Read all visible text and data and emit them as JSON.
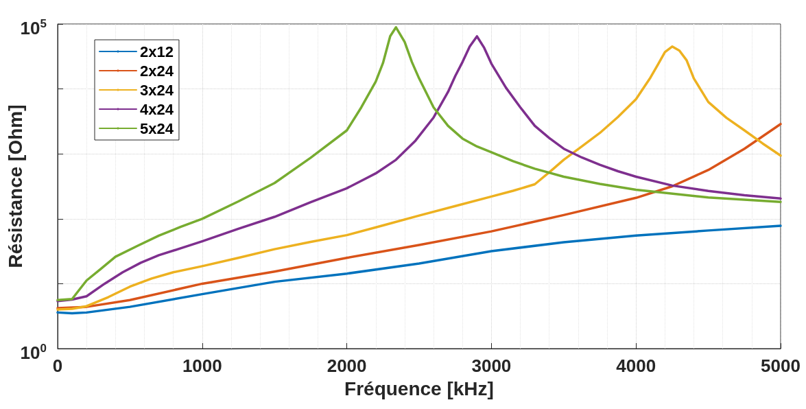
{
  "chart_data": {
    "type": "line",
    "xlabel": "Fréquence [kHz]",
    "ylabel": "Résistance [Ohm]",
    "xlim": [
      0,
      5000
    ],
    "xticks": [
      0,
      1000,
      2000,
      3000,
      4000,
      5000
    ],
    "ylim": [
      1,
      100000
    ],
    "yticks": [
      {
        "value": 1,
        "label": "10$^{0}$"
      },
      {
        "value": 10,
        "label": null
      },
      {
        "value": 100,
        "label": null
      },
      {
        "value": 1000,
        "label": null
      },
      {
        "value": 10000,
        "label": null
      },
      {
        "value": 100000,
        "label": "10$^{5}$"
      }
    ],
    "log": "y",
    "grid": true,
    "legend": "top left",
    "marker": "none",
    "line_style": "solid",
    "series": [
      {
        "name": "2x12",
        "color": "#0072bd",
        "x": [
          0,
          100,
          200,
          500,
          1000,
          1500,
          2000,
          2500,
          3000,
          3500,
          4000,
          4500,
          5000
        ],
        "values": [
          3.6,
          3.5,
          3.6,
          4.4,
          6.9,
          10.7,
          14.3,
          20.5,
          31.7,
          43.5,
          55,
          66,
          78
        ]
      },
      {
        "name": "2x24",
        "color": "#d95319",
        "x": [
          0,
          200,
          500,
          1000,
          1500,
          2000,
          2500,
          3000,
          3500,
          4000,
          4250,
          4500,
          4750,
          5000
        ],
        "values": [
          4.2,
          4.4,
          5.6,
          10,
          15.4,
          25,
          39.5,
          64,
          114,
          210,
          316,
          565,
          1200,
          2880
        ]
      },
      {
        "name": "3x24",
        "color": "#edb120",
        "x": [
          0,
          100,
          200,
          350,
          500,
          650,
          800,
          1000,
          1250,
          1500,
          1750,
          2000,
          2250,
          2500,
          2750,
          3000,
          3150,
          3300,
          3400,
          3500,
          3625,
          3750,
          3875,
          4000,
          4100,
          4150,
          4200,
          4250,
          4300,
          4350,
          4400,
          4500,
          4625,
          4750,
          4875,
          5000
        ],
        "values": [
          4.0,
          4.1,
          4.5,
          6.2,
          9,
          12,
          15,
          18.6,
          25,
          34,
          44,
          56,
          79,
          112,
          157,
          220,
          270,
          340,
          520,
          810,
          1300,
          2100,
          3700,
          6960,
          15000,
          23400,
          37000,
          45000,
          39000,
          27600,
          14500,
          6300,
          3600,
          2300,
          1450,
          940
        ]
      },
      {
        "name": "4x24",
        "color": "#7e2f8e",
        "x": [
          0,
          100,
          200,
          325,
          450,
          575,
          700,
          850,
          1000,
          1250,
          1500,
          1750,
          2000,
          2200,
          2340,
          2475,
          2600,
          2700,
          2750,
          2800,
          2850,
          2900,
          2950,
          3000,
          3100,
          3200,
          3300,
          3400,
          3500,
          3625,
          3750,
          3875,
          4000,
          4250,
          4500,
          4750,
          5000
        ],
        "values": [
          5.4,
          5.7,
          6.4,
          10,
          15,
          21,
          27.5,
          35,
          45,
          70,
          107,
          180,
          295,
          500,
          810,
          1600,
          3630,
          9000,
          15800,
          26000,
          45000,
          64600,
          43000,
          24500,
          10500,
          5200,
          2700,
          1750,
          1200,
          880,
          680,
          540,
          445,
          325,
          268,
          230,
          205
        ]
      },
      {
        "name": "5x24",
        "color": "#77ac30",
        "x": [
          0,
          100,
          200,
          300,
          400,
          550,
          700,
          850,
          1000,
          1250,
          1500,
          1750,
          2000,
          2100,
          2200,
          2250,
          2300,
          2340,
          2400,
          2450,
          2500,
          2600,
          2700,
          2800,
          2900,
          3000,
          3150,
          3300,
          3500,
          3750,
          4000,
          4500,
          5000
        ],
        "values": [
          5.6,
          5.8,
          11.2,
          17,
          26,
          38,
          55,
          75,
          100,
          185,
          355,
          870,
          2300,
          5200,
          13000,
          25000,
          65000,
          89000,
          53000,
          26000,
          14500,
          5200,
          2700,
          1720,
          1300,
          1060,
          770,
          590,
          445,
          345,
          280,
          213,
          182
        ]
      }
    ]
  }
}
